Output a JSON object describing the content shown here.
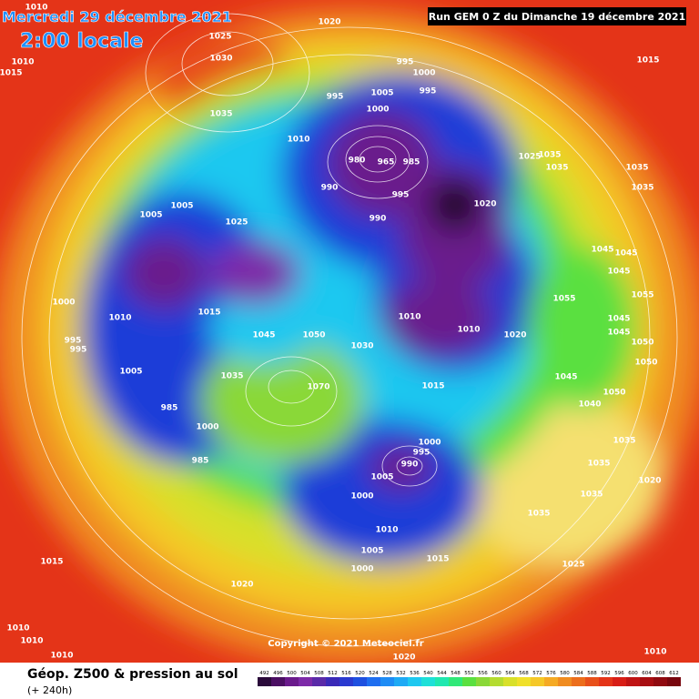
{
  "header": {
    "date": "Mercredi 29 décembre 2021",
    "time": "2:00 locale",
    "run": "Run GEM 0 Z du Dimanche 19 décembre 2021"
  },
  "copyright": "Copyright © 2021 Meteociel.fr",
  "legend": {
    "title": "Géop. Z500 & pression au sol",
    "subtitle": "(+ 240h)",
    "ticks": [
      492,
      496,
      500,
      504,
      508,
      512,
      516,
      520,
      524,
      528,
      532,
      536,
      540,
      544,
      548,
      552,
      556,
      560,
      564,
      568,
      572,
      576,
      580,
      584,
      588,
      592,
      596,
      600,
      604,
      608,
      612
    ],
    "colors": [
      "#2a0a3a",
      "#4b0f63",
      "#6a1a8c",
      "#7d2aa8",
      "#5a2aa8",
      "#3a2ab8",
      "#2a3ad0",
      "#1e50e0",
      "#1e6ef0",
      "#1e8cf5",
      "#1eaaf5",
      "#1ec8f0",
      "#1ee0d8",
      "#20e8b0",
      "#30e878",
      "#5ae040",
      "#8ad838",
      "#b4dc30",
      "#d8e02a",
      "#f0e02a",
      "#f5c828",
      "#f5aa24",
      "#f08c20",
      "#ec6e1c",
      "#e8501a",
      "#e43418",
      "#d81e16",
      "#c01414",
      "#a80e12",
      "#900a10",
      "#78060e"
    ]
  },
  "pressure_labels": [
    "1010",
    "1020",
    "1025",
    "1015",
    "1030",
    "1010",
    "1015",
    "995",
    "1000",
    "995",
    "995",
    "1005",
    "1035",
    "1000",
    "1010",
    "980",
    "965",
    "985",
    "1025",
    "1035",
    "1035",
    "1035",
    "1035",
    "990",
    "995",
    "1020",
    "990",
    "1005",
    "1005",
    "1025",
    "1045",
    "1045",
    "1045",
    "1055",
    "1000",
    "1015",
    "1010",
    "1010",
    "1010",
    "1020",
    "1055",
    "1045",
    "1045",
    "1050",
    "1050",
    "995",
    "995",
    "1045",
    "1050",
    "1030",
    "1005",
    "1035",
    "1045",
    "1070",
    "1015",
    "1050",
    "1040",
    "985",
    "1000",
    "1000",
    "995",
    "1035",
    "990",
    "985",
    "1005",
    "1035",
    "1020",
    "1000",
    "1035",
    "1035",
    "1010",
    "1005",
    "1015",
    "1015",
    "1000",
    "1025",
    "1020",
    "1010",
    "1010",
    "1010",
    "1010",
    "1020"
  ]
}
